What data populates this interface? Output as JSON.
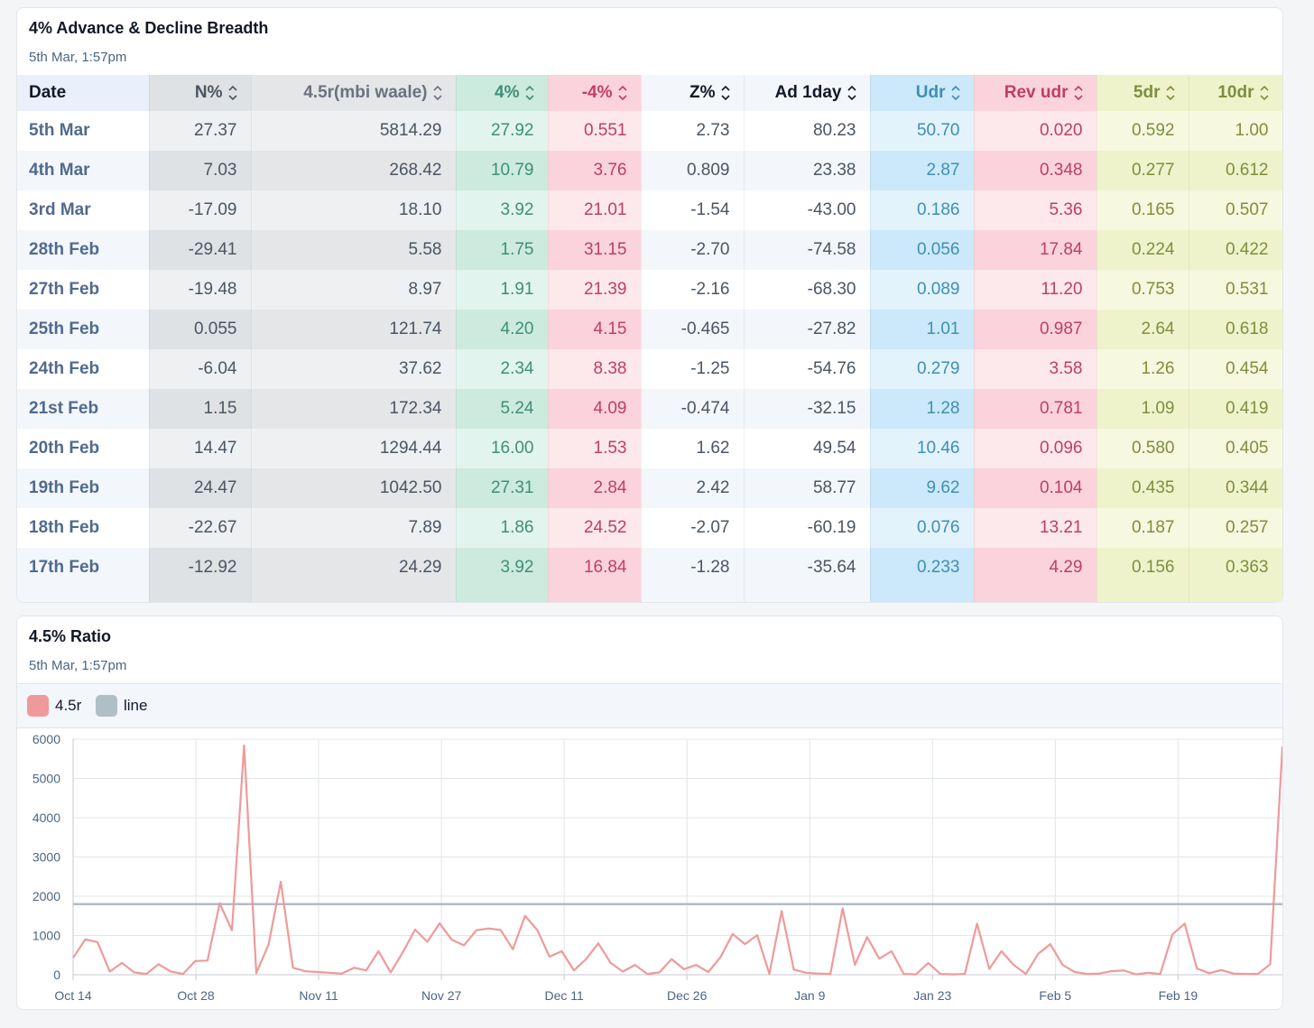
{
  "table_card": {
    "title": "4% Advance & Decline Breadth",
    "subtitle": "5th Mar, 1:57pm",
    "columns": [
      "Date",
      "N%",
      "4.5r(mbi waale)",
      "4%",
      "-4%",
      "Z%",
      "Ad 1day",
      "Udr",
      "Rev udr",
      "5dr",
      "10dr"
    ],
    "rows": [
      [
        "5th Mar",
        "27.37",
        "5814.29",
        "27.92",
        "0.551",
        "2.73",
        "80.23",
        "50.70",
        "0.020",
        "0.592",
        "1.00"
      ],
      [
        "4th Mar",
        "7.03",
        "268.42",
        "10.79",
        "3.76",
        "0.809",
        "23.38",
        "2.87",
        "0.348",
        "0.277",
        "0.612"
      ],
      [
        "3rd Mar",
        "-17.09",
        "18.10",
        "3.92",
        "21.01",
        "-1.54",
        "-43.00",
        "0.186",
        "5.36",
        "0.165",
        "0.507"
      ],
      [
        "28th Feb",
        "-29.41",
        "5.58",
        "1.75",
        "31.15",
        "-2.70",
        "-74.58",
        "0.056",
        "17.84",
        "0.224",
        "0.422"
      ],
      [
        "27th Feb",
        "-19.48",
        "8.97",
        "1.91",
        "21.39",
        "-2.16",
        "-68.30",
        "0.089",
        "11.20",
        "0.753",
        "0.531"
      ],
      [
        "25th Feb",
        "0.055",
        "121.74",
        "4.20",
        "4.15",
        "-0.465",
        "-27.82",
        "1.01",
        "0.987",
        "2.64",
        "0.618"
      ],
      [
        "24th Feb",
        "-6.04",
        "37.62",
        "2.34",
        "8.38",
        "-1.25",
        "-54.76",
        "0.279",
        "3.58",
        "1.26",
        "0.454"
      ],
      [
        "21st Feb",
        "1.15",
        "172.34",
        "5.24",
        "4.09",
        "-0.474",
        "-32.15",
        "1.28",
        "0.781",
        "1.09",
        "0.419"
      ],
      [
        "20th Feb",
        "14.47",
        "1294.44",
        "16.00",
        "1.53",
        "1.62",
        "49.54",
        "10.46",
        "0.096",
        "0.580",
        "0.405"
      ],
      [
        "19th Feb",
        "24.47",
        "1042.50",
        "27.31",
        "2.84",
        "2.42",
        "58.77",
        "9.62",
        "0.104",
        "0.435",
        "0.344"
      ],
      [
        "18th Feb",
        "-22.67",
        "7.89",
        "1.86",
        "24.52",
        "-2.07",
        "-60.19",
        "0.076",
        "13.21",
        "0.187",
        "0.257"
      ],
      [
        "17th Feb",
        "-12.92",
        "24.29",
        "3.92",
        "16.84",
        "-1.28",
        "-35.64",
        "0.233",
        "4.29",
        "0.156",
        "0.363"
      ]
    ]
  },
  "chart_card": {
    "title": "4.5% Ratio",
    "subtitle": "5th Mar, 1:57pm"
  },
  "colors": {
    "series_4_5r": "#ef9a9a",
    "series_line": "#b0bec5"
  },
  "chart_data": {
    "type": "line",
    "title": "4.5% Ratio",
    "ylim": [
      0,
      6000
    ],
    "yticks": [
      0,
      1000,
      2000,
      3000,
      4000,
      5000,
      6000
    ],
    "xticks": [
      "Oct 14",
      "Oct 28",
      "Nov 11",
      "Nov 27",
      "Dec 11",
      "Dec 26",
      "Jan 9",
      "Jan 23",
      "Feb 5",
      "Feb 19"
    ],
    "grid": true,
    "legend": "top-left",
    "series": [
      {
        "name": "4.5r",
        "values": [
          430,
          900,
          830,
          80,
          300,
          60,
          20,
          270,
          80,
          20,
          350,
          360,
          1820,
          1130,
          5840,
          40,
          770,
          2370,
          180,
          90,
          70,
          50,
          30,
          180,
          110,
          600,
          60,
          580,
          1150,
          840,
          1310,
          890,
          750,
          1130,
          1180,
          1140,
          650,
          1500,
          1140,
          460,
          600,
          110,
          400,
          800,
          300,
          80,
          250,
          20,
          60,
          400,
          140,
          250,
          70,
          450,
          1040,
          780,
          1010,
          20,
          1620,
          130,
          50,
          30,
          20,
          1690,
          250,
          960,
          410,
          600,
          20,
          10,
          300,
          20,
          10,
          20,
          1300,
          150,
          600,
          250,
          20,
          530,
          780,
          250,
          70,
          20,
          30,
          90,
          110,
          10,
          50,
          20,
          1030,
          1300,
          160,
          40,
          120,
          30,
          20,
          20,
          270,
          5814.29
        ]
      },
      {
        "name": "line",
        "values": [
          1800
        ]
      }
    ]
  }
}
